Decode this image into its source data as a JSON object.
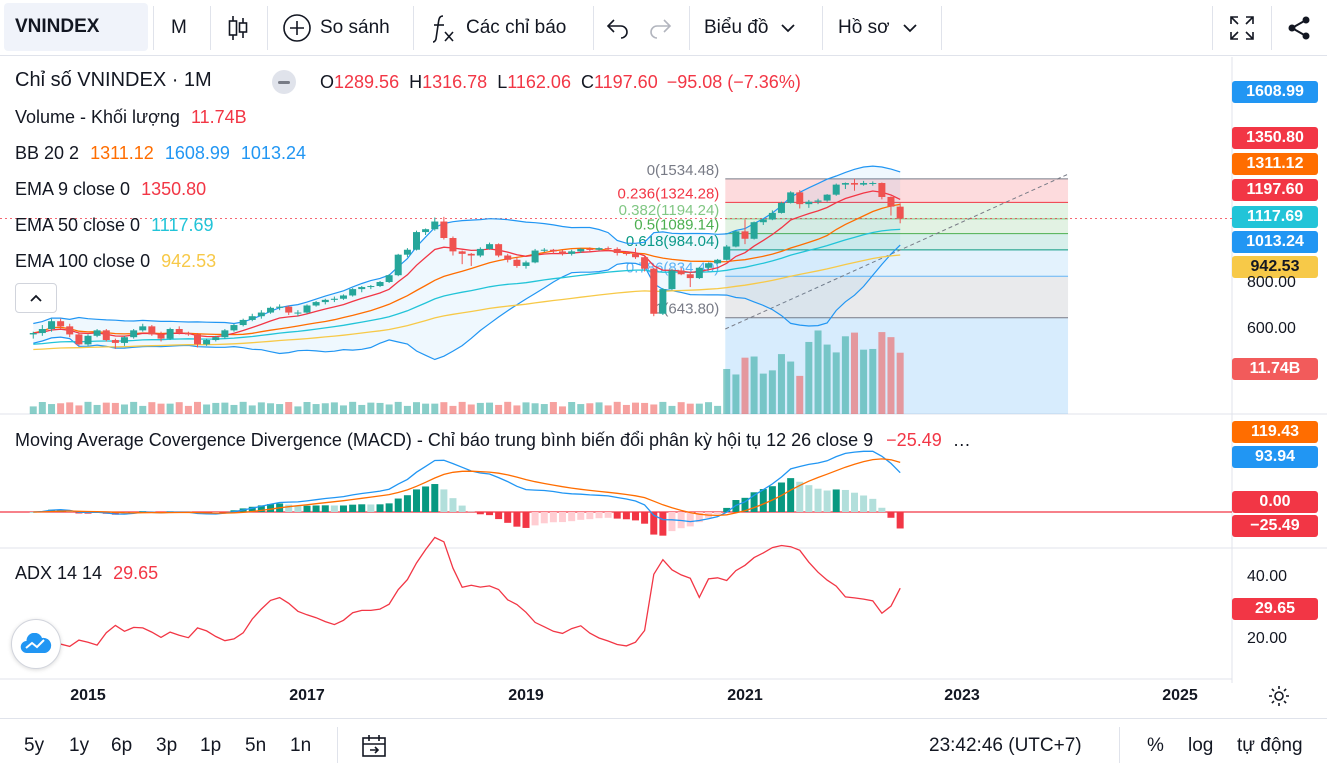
{
  "toolbar": {
    "symbol": "VNINDEX",
    "interval": "M",
    "compare": "So sánh",
    "indicators": "Các chỉ báo",
    "chart_type": "Biểu đồ",
    "profile": "Hồ sơ"
  },
  "legend": {
    "title": "Chỉ số VNINDEX · 1M",
    "o_label": "O",
    "o": "1289.56",
    "h_label": "H",
    "h": "1316.78",
    "l_label": "L",
    "l": "1162.06",
    "c_label": "C",
    "c": "1197.60",
    "change": "−95.08 (−7.36%)",
    "volume_label": "Volume - Khối lượng",
    "volume_value": "11.74B",
    "bb_label": "BB 20 2",
    "bb_mid": "1311.12",
    "bb_up": "1608.99",
    "bb_low": "1013.24",
    "ema9_label": "EMA 9 close 0",
    "ema9": "1350.80",
    "ema50_label": "EMA 50 close 0",
    "ema50": "1117.69",
    "ema100_label": "EMA 100 close 0",
    "ema100": "942.53",
    "macd_label": "Moving Average Covergence Divergence (MACD) - Chỉ báo trung bình biến đổi phân kỳ hội tụ 12 26 close 9",
    "macd_value": "−25.49",
    "macd_more": "…",
    "adx_label": "ADX 14 14",
    "adx_value": "29.65"
  },
  "price_scale": {
    "ticks": [
      "800.00",
      "600.00"
    ],
    "pills": [
      {
        "text": "1608.99",
        "color": "#2196f3"
      },
      {
        "text": "1350.80",
        "color": "#f23645"
      },
      {
        "text": "1311.12",
        "color": "#ff6d00"
      },
      {
        "text": "1197.60",
        "color": "#f23645"
      },
      {
        "text": "1117.69",
        "color": "#22c4d8"
      },
      {
        "text": "1013.24",
        "color": "#2196f3"
      },
      {
        "text": "942.53",
        "color": "#f7c948"
      },
      {
        "text": "11.74B",
        "color": "#f25b5b"
      }
    ]
  },
  "macd_scale": {
    "pills": [
      {
        "text": "119.43",
        "color": "#ff6d00"
      },
      {
        "text": "93.94",
        "color": "#2196f3"
      },
      {
        "text": "0.00",
        "color": "#f23645"
      },
      {
        "text": "−25.49",
        "color": "#f23645"
      }
    ]
  },
  "adx_scale": {
    "ticks": [
      "40.00",
      "20.00"
    ],
    "pill": {
      "text": "29.65",
      "color": "#f23645"
    }
  },
  "fib": {
    "levels": [
      {
        "label": "0(1534.48)",
        "color": "#787b86"
      },
      {
        "label": "0.236(1324.28)",
        "color": "#f23645"
      },
      {
        "label": "0.382(1194.24)",
        "color": "#81c784"
      },
      {
        "label": "0.5(1089.14)",
        "color": "#4caf50"
      },
      {
        "label": "0.618(984.04)",
        "color": "#089981"
      },
      {
        "label": "0.786(834.40)",
        "color": "#64b5f6"
      },
      {
        "label": "1(643.80)",
        "color": "#787b86"
      }
    ]
  },
  "time_axis": {
    "labels": [
      "2015",
      "2017",
      "2019",
      "2021",
      "2023",
      "2025"
    ]
  },
  "bottom": {
    "ranges": [
      "5y",
      "1y",
      "6p",
      "3p",
      "1p",
      "5n",
      "1n"
    ],
    "time": "23:42:46 (UTC+7)",
    "percent": "%",
    "log": "log",
    "auto": "tự động"
  },
  "colors": {
    "up": "#26a69a",
    "down": "#ef5350",
    "ema9": "#f23645",
    "ema50": "#22c4d8",
    "ema100": "#f7c948",
    "bb": "#2196f3",
    "macd": "#2196f3",
    "signal": "#ff6d00",
    "adx": "#f23645"
  },
  "chart_data": {
    "type": "candlestick",
    "candles": [
      [
        2014.5,
        580,
        590,
        565,
        585
      ],
      [
        2014.583,
        585,
        615,
        575,
        600
      ],
      [
        2014.667,
        600,
        640,
        590,
        630
      ],
      [
        2014.75,
        630,
        640,
        600,
        610
      ],
      [
        2014.833,
        610,
        620,
        570,
        580
      ],
      [
        2014.917,
        580,
        585,
        540,
        545
      ],
      [
        2015,
        545,
        580,
        540,
        575
      ],
      [
        2015.083,
        575,
        600,
        570,
        595
      ],
      [
        2015.167,
        595,
        600,
        555,
        560
      ],
      [
        2015.25,
        560,
        565,
        530,
        550
      ],
      [
        2015.333,
        550,
        575,
        540,
        570
      ],
      [
        2015.417,
        570,
        600,
        565,
        595
      ],
      [
        2015.5,
        595,
        620,
        590,
        610
      ],
      [
        2015.583,
        610,
        615,
        575,
        580
      ],
      [
        2015.667,
        580,
        590,
        555,
        565
      ],
      [
        2015.75,
        565,
        605,
        560,
        600
      ],
      [
        2015.833,
        600,
        610,
        580,
        585
      ],
      [
        2015.917,
        585,
        590,
        575,
        580
      ],
      [
        2016,
        580,
        585,
        535,
        545
      ],
      [
        2016.083,
        545,
        565,
        540,
        560
      ],
      [
        2016.167,
        560,
        575,
        555,
        570
      ],
      [
        2016.25,
        570,
        600,
        565,
        595
      ],
      [
        2016.333,
        595,
        620,
        590,
        615
      ],
      [
        2016.417,
        615,
        640,
        610,
        635
      ],
      [
        2016.5,
        635,
        660,
        630,
        650
      ],
      [
        2016.583,
        650,
        675,
        640,
        665
      ],
      [
        2016.667,
        665,
        690,
        660,
        685
      ],
      [
        2016.75,
        685,
        700,
        675,
        690
      ],
      [
        2016.833,
        690,
        695,
        655,
        665
      ],
      [
        2016.917,
        665,
        675,
        650,
        665
      ],
      [
        2017,
        665,
        700,
        660,
        695
      ],
      [
        2017.083,
        695,
        715,
        690,
        710
      ],
      [
        2017.167,
        710,
        725,
        700,
        720
      ],
      [
        2017.25,
        720,
        735,
        710,
        725
      ],
      [
        2017.333,
        725,
        745,
        720,
        740
      ],
      [
        2017.417,
        740,
        775,
        735,
        770
      ],
      [
        2017.5,
        770,
        785,
        755,
        780
      ],
      [
        2017.583,
        780,
        790,
        770,
        785
      ],
      [
        2017.667,
        785,
        810,
        780,
        805
      ],
      [
        2017.75,
        805,
        845,
        800,
        840
      ],
      [
        2017.833,
        840,
        960,
        835,
        955
      ],
      [
        2017.917,
        955,
        995,
        940,
        985
      ],
      [
        2018,
        985,
        1110,
        980,
        1100
      ],
      [
        2018.083,
        1100,
        1125,
        1080,
        1120
      ],
      [
        2018.167,
        1120,
        1205,
        1110,
        1175
      ],
      [
        2018.25,
        1175,
        1210,
        1050,
        1060
      ],
      [
        2018.333,
        1060,
        1070,
        950,
        975
      ],
      [
        2018.417,
        975,
        980,
        900,
        960
      ],
      [
        2018.5,
        960,
        965,
        890,
        950
      ],
      [
        2018.583,
        950,
        1000,
        940,
        990
      ],
      [
        2018.667,
        990,
        1030,
        985,
        1020
      ],
      [
        2018.75,
        1020,
        1025,
        940,
        950
      ],
      [
        2018.833,
        950,
        960,
        910,
        925
      ],
      [
        2018.917,
        925,
        940,
        880,
        890
      ],
      [
        2019,
        890,
        920,
        875,
        910
      ],
      [
        2019.083,
        910,
        990,
        905,
        980
      ],
      [
        2019.167,
        980,
        995,
        970,
        985
      ],
      [
        2019.25,
        985,
        990,
        960,
        975
      ],
      [
        2019.333,
        975,
        985,
        950,
        960
      ],
      [
        2019.417,
        960,
        985,
        950,
        975
      ],
      [
        2019.5,
        975,
        995,
        965,
        990
      ],
      [
        2019.583,
        990,
        1000,
        975,
        985
      ],
      [
        2019.667,
        985,
        1000,
        980,
        995
      ],
      [
        2019.75,
        995,
        1005,
        980,
        990
      ],
      [
        2019.833,
        990,
        1000,
        950,
        965
      ],
      [
        2019.917,
        965,
        975,
        950,
        960
      ],
      [
        2020,
        960,
        995,
        930,
        940
      ],
      [
        2020.083,
        940,
        945,
        860,
        875
      ],
      [
        2020.167,
        875,
        880,
        650,
        660
      ],
      [
        2020.25,
        660,
        775,
        655,
        770
      ],
      [
        2020.333,
        770,
        875,
        765,
        865
      ],
      [
        2020.417,
        865,
        880,
        840,
        845
      ],
      [
        2020.5,
        845,
        855,
        780,
        825
      ],
      [
        2020.583,
        825,
        885,
        820,
        880
      ],
      [
        2020.667,
        880,
        910,
        870,
        905
      ],
      [
        2020.75,
        905,
        930,
        900,
        925
      ],
      [
        2020.833,
        925,
        1015,
        920,
        1005
      ],
      [
        2020.917,
        1005,
        1110,
        1000,
        1105
      ],
      [
        2021,
        1105,
        1190,
        1020,
        1055
      ],
      [
        2021.083,
        1055,
        1175,
        1050,
        1170
      ],
      [
        2021.167,
        1170,
        1195,
        1150,
        1190
      ],
      [
        2021.25,
        1190,
        1260,
        1185,
        1240
      ],
      [
        2021.333,
        1240,
        1330,
        1235,
        1320
      ],
      [
        2021.417,
        1320,
        1420,
        1315,
        1410
      ],
      [
        2021.5,
        1410,
        1430,
        1275,
        1310
      ],
      [
        2021.583,
        1310,
        1345,
        1280,
        1330
      ],
      [
        2021.667,
        1330,
        1355,
        1310,
        1340
      ],
      [
        2021.75,
        1340,
        1395,
        1330,
        1390
      ],
      [
        2021.833,
        1390,
        1490,
        1380,
        1480
      ],
      [
        2021.917,
        1480,
        1500,
        1440,
        1495
      ],
      [
        2022,
        1495,
        1535,
        1425,
        1480
      ],
      [
        2022.083,
        1480,
        1515,
        1470,
        1495
      ],
      [
        2022.167,
        1495,
        1510,
        1470,
        1495
      ],
      [
        2022.25,
        1495,
        1500,
        1350,
        1370
      ],
      [
        2022.333,
        1370,
        1375,
        1220,
        1290
      ],
      [
        2022.417,
        1289.56,
        1316.78,
        1162.06,
        1197.6
      ]
    ]
  }
}
